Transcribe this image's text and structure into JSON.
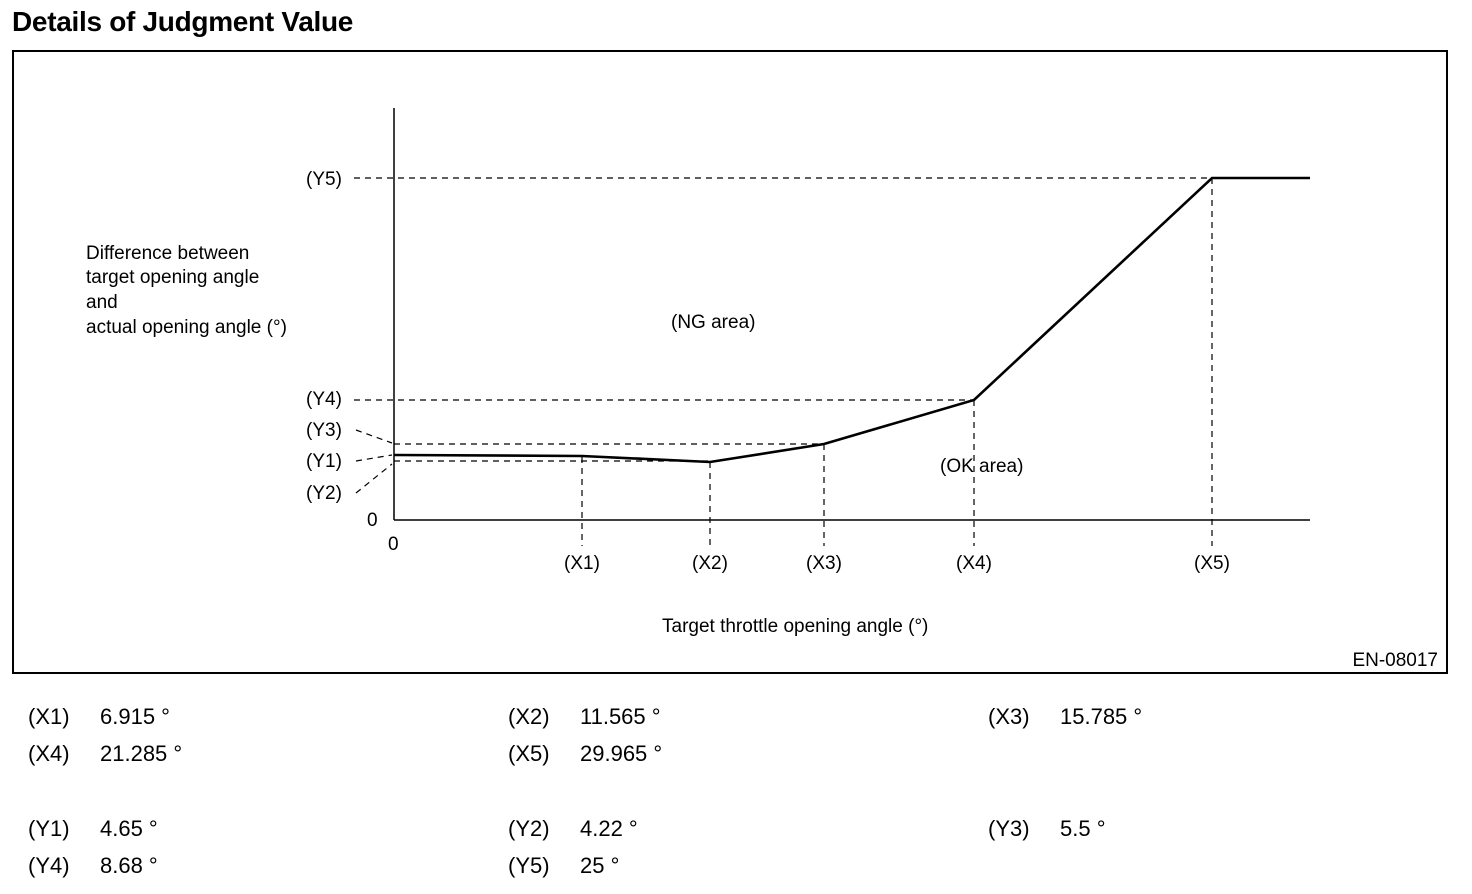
{
  "title": "Details of Judgment Value",
  "figure": {
    "y_axis_label_lines": [
      "Difference between",
      "target opening angle",
      "and",
      "actual opening angle (°)"
    ],
    "x_axis_label": "Target throttle opening angle (°)",
    "origin_x": "0",
    "origin_y": "0",
    "x_ticks": [
      "(X1)",
      "(X2)",
      "(X3)",
      "(X4)",
      "(X5)"
    ],
    "y_ticks": [
      "(Y5)",
      "(Y4)",
      "(Y3)",
      "(Y1)",
      "(Y2)"
    ],
    "ng_area": "(NG area)",
    "ok_area": "(OK area)",
    "code": "EN-08017"
  },
  "values": {
    "x": [
      {
        "key": "(X1)",
        "value": "6.915 °"
      },
      {
        "key": "(X2)",
        "value": "11.565 °"
      },
      {
        "key": "(X3)",
        "value": "15.785 °"
      },
      {
        "key": "(X4)",
        "value": "21.285 °"
      },
      {
        "key": "(X5)",
        "value": "29.965 °"
      }
    ],
    "y": [
      {
        "key": "(Y1)",
        "value": "4.65 °"
      },
      {
        "key": "(Y2)",
        "value": "4.22 °"
      },
      {
        "key": "(Y3)",
        "value": "5.5 °"
      },
      {
        "key": "(Y4)",
        "value": "8.68 °"
      },
      {
        "key": "(Y5)",
        "value": "25 °"
      }
    ]
  }
}
